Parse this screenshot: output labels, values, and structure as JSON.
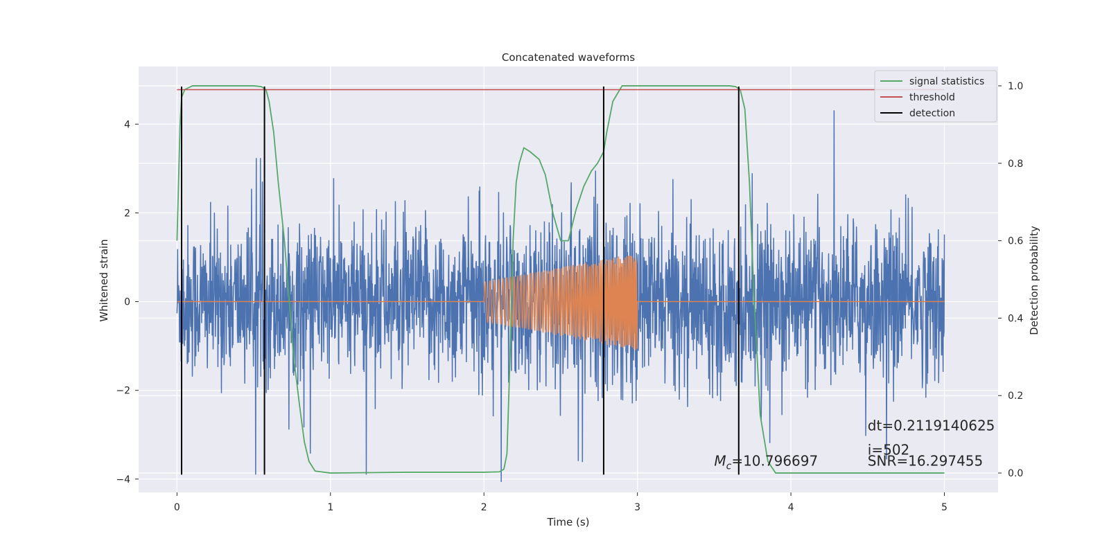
{
  "chart_data": {
    "type": "line",
    "title": "Concatenated waveforms",
    "xlabel": "Time (s)",
    "ylabel": "Whitened strain",
    "y2label": "Detection probability",
    "xlim": [
      -0.25,
      5.35
    ],
    "ylim": [
      -4.3,
      5.3
    ],
    "y2lim": [
      -0.05,
      1.05
    ],
    "x_ticks": [
      0,
      1,
      2,
      3,
      4,
      5
    ],
    "y_ticks": [
      -4,
      -2,
      0,
      2,
      4
    ],
    "y2_ticks": [
      0.0,
      0.2,
      0.4,
      0.6,
      0.8,
      1.0
    ],
    "x_tick_labels": [
      "0",
      "1",
      "2",
      "3",
      "4",
      "5"
    ],
    "y_tick_labels": [
      "−4",
      "−2",
      "0",
      "2",
      "4"
    ],
    "y2_tick_labels": [
      "0.0",
      "0.2",
      "0.4",
      "0.6",
      "0.8",
      "1.0"
    ],
    "grid": true,
    "legend_position": "top-right",
    "series": [
      {
        "name": "",
        "color": "#4c72b0",
        "kind": "noise",
        "x_range": [
          0,
          5
        ],
        "std": 0.85
      },
      {
        "name": "",
        "color": "#dd8452",
        "kind": "chirp",
        "x_range": [
          0,
          5
        ],
        "chirp_start": 2.0,
        "chirp_end": 3.0,
        "amp_start": 0.45,
        "amp_end": 1.1
      },
      {
        "name": "signal statistics",
        "color": "#55a868",
        "axis": "right",
        "x": [
          0,
          0.01,
          0.02,
          0.03,
          0.05,
          0.1,
          0.2,
          0.3,
          0.4,
          0.5,
          0.55,
          0.58,
          0.6,
          0.63,
          0.66,
          0.7,
          0.73,
          0.76,
          0.8,
          0.83,
          0.86,
          0.9,
          1.0,
          1.5,
          2.0,
          2.1,
          2.13,
          2.15,
          2.17,
          2.19,
          2.21,
          2.23,
          2.26,
          2.3,
          2.36,
          2.4,
          2.45,
          2.5,
          2.55,
          2.6,
          2.65,
          2.7,
          2.74,
          2.78,
          2.8,
          2.84,
          2.9,
          3.0,
          3.2,
          3.5,
          3.6,
          3.64,
          3.67,
          3.7,
          3.73,
          3.76,
          3.8,
          3.85,
          3.9,
          4.0,
          4.5,
          5.0
        ],
        "y": [
          0.6,
          0.75,
          0.9,
          0.97,
          0.99,
          1.0,
          1.0,
          1.0,
          1.0,
          1.0,
          0.998,
          0.99,
          0.96,
          0.88,
          0.75,
          0.6,
          0.45,
          0.3,
          0.17,
          0.08,
          0.03,
          0.005,
          0.0,
          0.002,
          0.002,
          0.003,
          0.01,
          0.05,
          0.3,
          0.6,
          0.75,
          0.8,
          0.84,
          0.83,
          0.81,
          0.77,
          0.67,
          0.6,
          0.6,
          0.68,
          0.74,
          0.78,
          0.8,
          0.83,
          0.88,
          0.96,
          1.0,
          1.0,
          1.0,
          1.0,
          1.0,
          0.998,
          0.99,
          0.94,
          0.75,
          0.45,
          0.15,
          0.03,
          0.0,
          0.0,
          0.0,
          0.0
        ]
      },
      {
        "name": "threshold",
        "color": "#c44e52",
        "axis": "right",
        "x": [
          0,
          5
        ],
        "y": [
          0.99,
          0.99
        ]
      },
      {
        "name": "detection",
        "color": "#000000",
        "kind": "vlines",
        "x": [
          0.03,
          0.57,
          2.78,
          3.66
        ],
        "y_range": [
          -3.9,
          4.85
        ]
      }
    ],
    "annotations": [
      {
        "x": 3.5,
        "y": -3.7,
        "math_symbol": "M",
        "math_sub": "c",
        "text": "=10.796697"
      },
      {
        "x": 4.5,
        "y": -2.9,
        "text": "dt=0.2119140625"
      },
      {
        "x": 4.5,
        "y": -3.45,
        "text": " i=502"
      },
      {
        "x": 4.5,
        "y": -3.7,
        "text": "SNR=16.297455"
      }
    ]
  }
}
